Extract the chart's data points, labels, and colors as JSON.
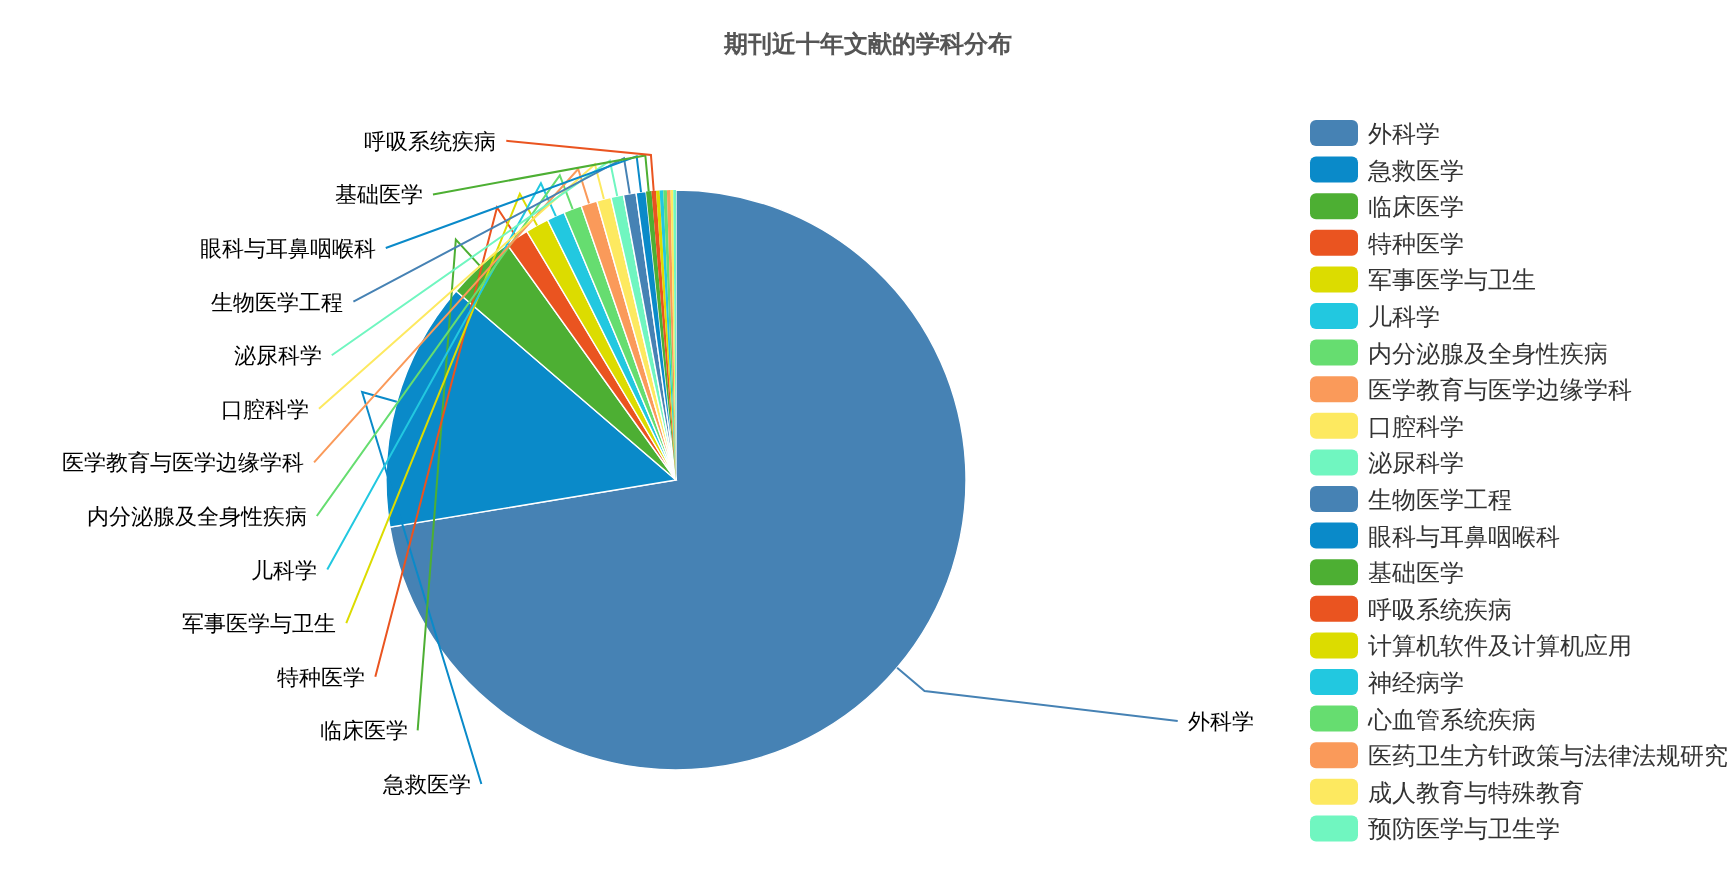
{
  "chart_data": {
    "type": "pie",
    "title": "期刊近十年文献的学科分布",
    "categories": [
      "外科学",
      "急救医学",
      "临床医学",
      "特种医学",
      "军事医学与卫生",
      "儿科学",
      "内分泌腺及全身性疾病",
      "医学教育与医学边缘学科",
      "口腔科学",
      "泌尿科学",
      "生物医学工程",
      "眼科与耳鼻咽喉科",
      "基础医学",
      "呼吸系统疾病",
      "计算机软件及计算机应用",
      "神经病学",
      "心血管系统疾病",
      "医药卫生方针政策与法律法规研究",
      "成人教育与特殊教育",
      "预防医学与卫生学"
    ],
    "values": [
      72.4,
      13.9,
      3.8,
      1.3,
      1.3,
      1.0,
      1.0,
      0.9,
      0.8,
      0.7,
      0.7,
      0.55,
      0.3,
      0.25,
      0.2,
      0.2,
      0.2,
      0.2,
      0.15,
      0.15
    ],
    "colors": [
      "#4682b4",
      "#0a8ac9",
      "#4daf33",
      "#ea5420",
      "#dcdc00",
      "#22c8e0",
      "#66dd70",
      "#fa9a5a",
      "#fde960",
      "#70f6c0",
      "#4682b4",
      "#0a8ac9",
      "#4daf33",
      "#ea5420",
      "#dcdc00",
      "#22c8e0",
      "#66dd70",
      "#fa9a5a",
      "#fde960",
      "#70f6c0"
    ],
    "legend": "right"
  }
}
